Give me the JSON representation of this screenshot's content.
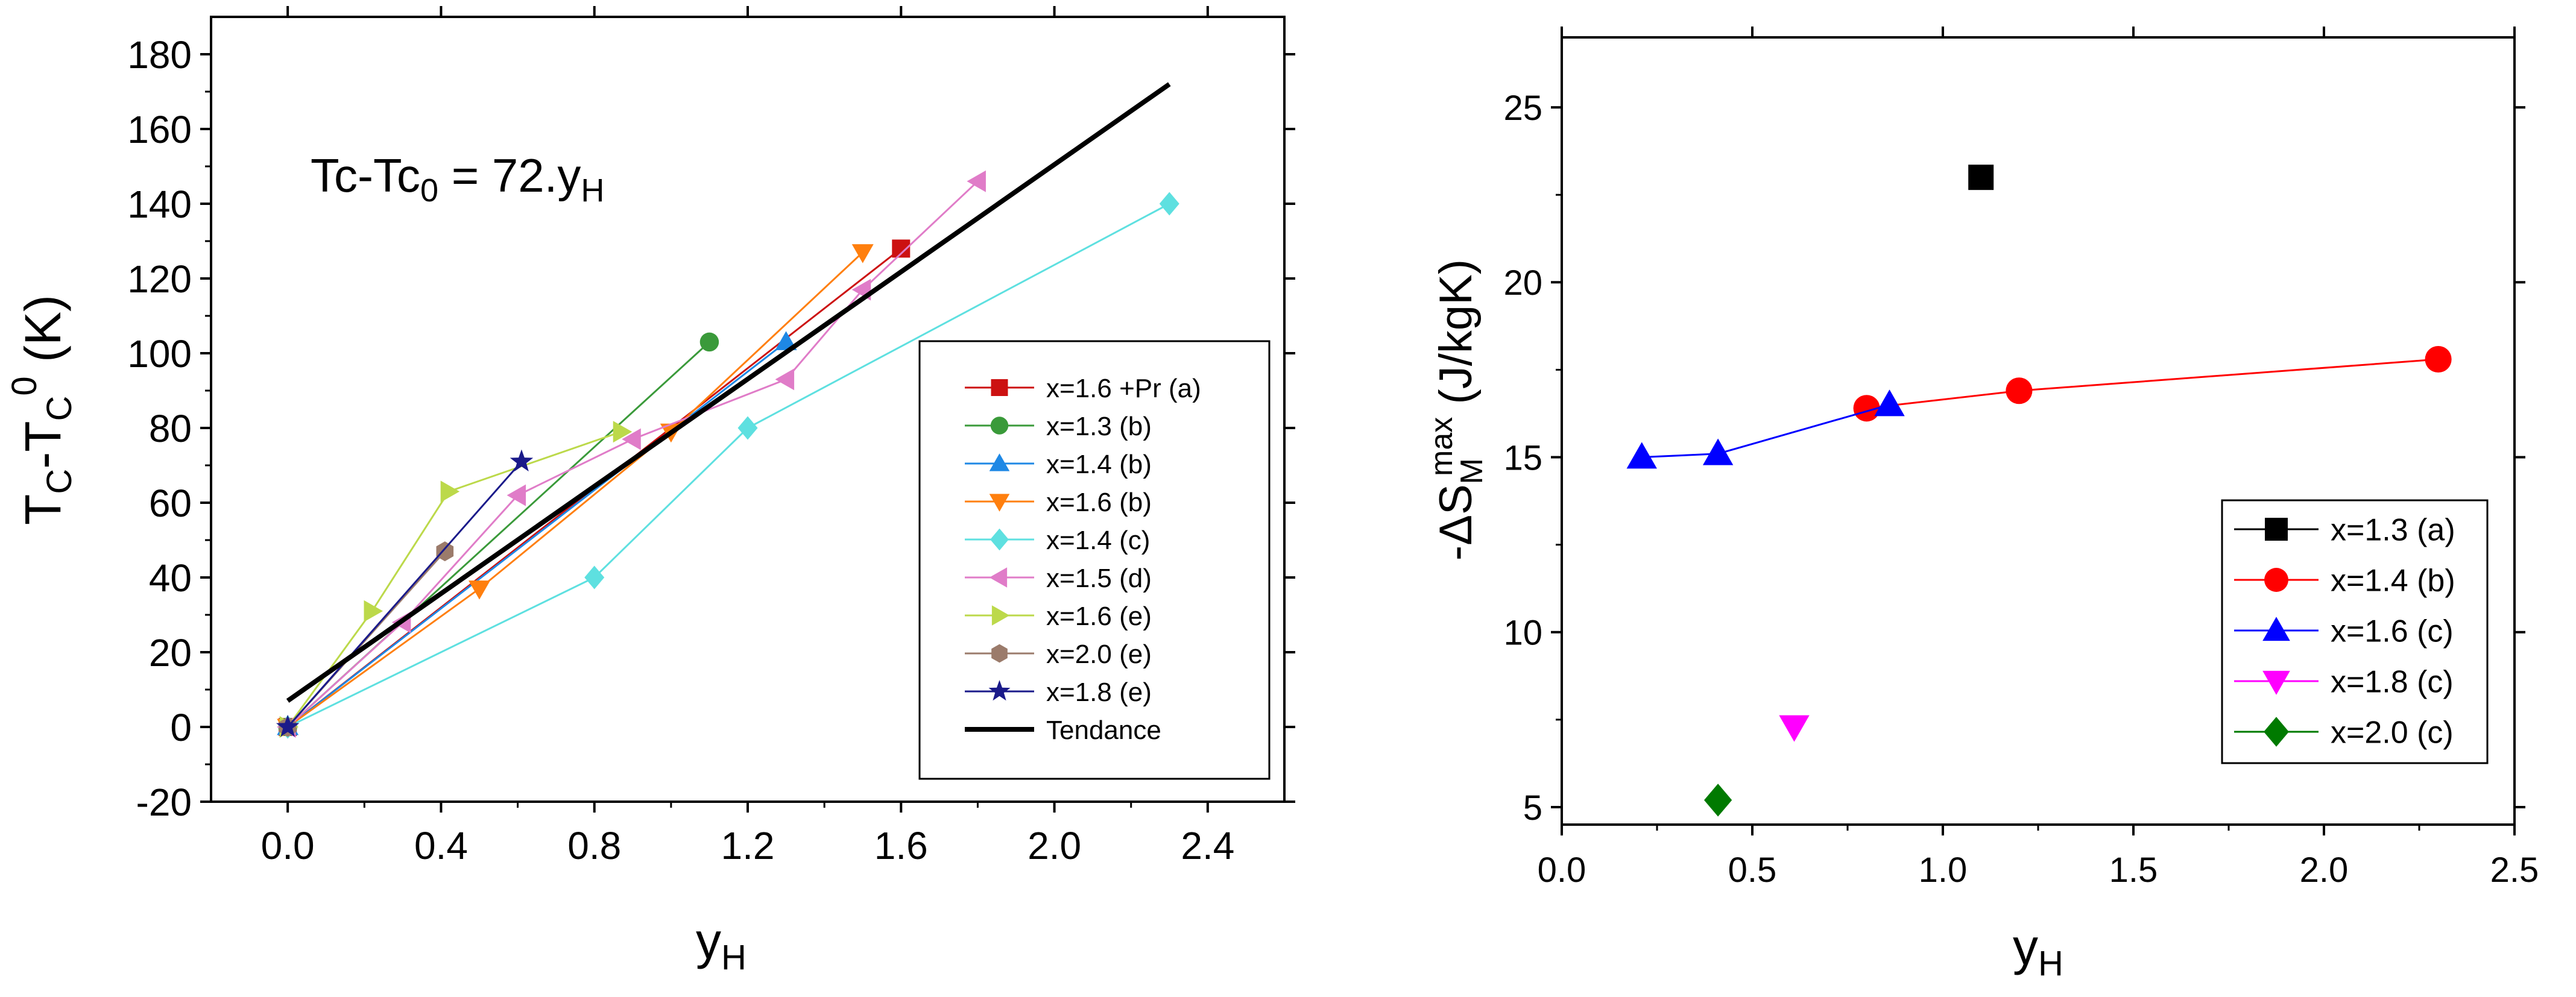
{
  "chart_data": [
    {
      "type": "line",
      "xlabel": "y",
      "xlabel_sub": "H",
      "ylabel_parts": [
        "T",
        "C",
        "-T",
        "C",
        "0",
        " (K)"
      ],
      "xlim": [
        -0.2,
        2.6
      ],
      "ylim": [
        -20,
        190
      ],
      "xticks": [
        "0.0",
        "0.4",
        "0.8",
        "1.2",
        "1.6",
        "2.0",
        "2.4"
      ],
      "xtick_values": [
        0,
        0.4,
        0.8,
        1.2,
        1.6,
        2.0,
        2.4
      ],
      "yticks": [
        "-20",
        "0",
        "20",
        "40",
        "60",
        "80",
        "100",
        "120",
        "140",
        "160",
        "180"
      ],
      "ytick_values": [
        -20,
        0,
        20,
        40,
        60,
        80,
        100,
        120,
        140,
        160,
        180
      ],
      "annotation": {
        "main": "Tc-Tc",
        "sub": "0",
        "rest": " = 72.y",
        "sub2": "H"
      },
      "grid": false,
      "legend_position": "bottom-right",
      "series": [
        {
          "name": "x=1.6 +Pr (a)",
          "color": "#cc1111",
          "marker": "square",
          "x": [
            0,
            1.6
          ],
          "y": [
            0,
            128
          ]
        },
        {
          "name": "x=1.3 (b)",
          "color": "#3a9a3a",
          "marker": "circle",
          "x": [
            0,
            1.1
          ],
          "y": [
            0,
            103
          ]
        },
        {
          "name": "x=1.4 (b)",
          "color": "#1e88e5",
          "marker": "triangle-up",
          "x": [
            0,
            1.3
          ],
          "y": [
            0,
            103
          ]
        },
        {
          "name": "x=1.6 (b)",
          "color": "#ff7f0e",
          "marker": "triangle-down",
          "x": [
            0,
            0.5,
            1.0,
            1.5
          ],
          "y": [
            0,
            37,
            79,
            127
          ]
        },
        {
          "name": "x=1.4 (c)",
          "color": "#5ee0e0",
          "marker": "diamond",
          "x": [
            0,
            0.8,
            1.2,
            2.3
          ],
          "y": [
            0,
            40,
            80,
            140
          ]
        },
        {
          "name": "x=1.5 (d)",
          "color": "#e07cc8",
          "marker": "triangle-left",
          "x": [
            0,
            0.3,
            0.6,
            0.9,
            1.3,
            1.5,
            1.8
          ],
          "y": [
            0,
            28,
            62,
            77,
            93,
            117,
            146
          ]
        },
        {
          "name": "x=1.6 (e)",
          "color": "#bcd94a",
          "marker": "triangle-right",
          "x": [
            0,
            0.22,
            0.42,
            0.87
          ],
          "y": [
            0,
            31,
            63,
            79
          ]
        },
        {
          "name": "x=2.0 (e)",
          "color": "#9b7b6b",
          "marker": "hexagon",
          "x": [
            0,
            0.41
          ],
          "y": [
            0,
            47
          ]
        },
        {
          "name": "x=1.8 (e)",
          "color": "#1a1a8a",
          "marker": "star",
          "x": [
            0,
            0.61
          ],
          "y": [
            0,
            71
          ]
        },
        {
          "name": "Tendance",
          "color": "#000000",
          "marker": "none",
          "thick": true,
          "x": [
            0,
            2.3
          ],
          "y": [
            7,
            172
          ]
        }
      ]
    },
    {
      "type": "scatter",
      "xlabel": "y",
      "xlabel_sub": "H",
      "ylabel_parts": [
        "-ΔS",
        "M",
        "max",
        " (J/kgK)"
      ],
      "xlim": [
        0,
        2.5
      ],
      "ylim": [
        4.5,
        27
      ],
      "xticks": [
        "0.0",
        "0.5",
        "1.0",
        "1.5",
        "2.0",
        "2.5"
      ],
      "xtick_values": [
        0,
        0.5,
        1.0,
        1.5,
        2.0,
        2.5
      ],
      "yticks": [
        "5",
        "10",
        "15",
        "20",
        "25"
      ],
      "ytick_values": [
        5,
        10,
        15,
        20,
        25
      ],
      "grid": false,
      "legend_position": "bottom-right",
      "series": [
        {
          "name": "x=1.3 (a)",
          "color": "#000000",
          "marker": "square",
          "x": [
            1.1
          ],
          "y": [
            23
          ]
        },
        {
          "name": "x=1.4 (b)",
          "color": "#ff0000",
          "marker": "circle",
          "x": [
            0.8,
            1.2,
            2.3
          ],
          "y": [
            16.4,
            16.9,
            17.8
          ]
        },
        {
          "name": "x=1.6 (c)",
          "color": "#0000ff",
          "marker": "triangle-up",
          "x": [
            0.21,
            0.41,
            0.86
          ],
          "y": [
            15.0,
            15.1,
            16.5
          ]
        },
        {
          "name": "x=1.8 (c)",
          "color": "#ff00ff",
          "marker": "triangle-down",
          "x": [
            0.61
          ],
          "y": [
            7.3
          ]
        },
        {
          "name": "x=2.0 (c)",
          "color": "#007a00",
          "marker": "diamond",
          "x": [
            0.41
          ],
          "y": [
            5.2
          ]
        }
      ]
    }
  ]
}
